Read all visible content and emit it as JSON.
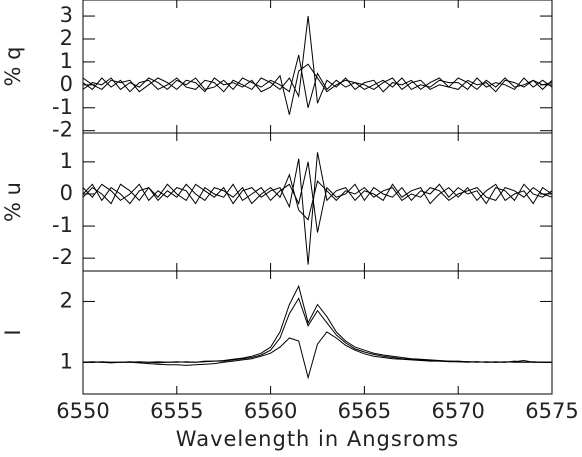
{
  "chart_data": [
    {
      "type": "line",
      "ylabel": "% q",
      "color": "#000000",
      "x": [
        6550,
        6550.5,
        6551,
        6551.5,
        6552,
        6552.5,
        6553,
        6553.5,
        6554,
        6554.5,
        6555,
        6555.5,
        6556,
        6556.5,
        6557,
        6557.5,
        6558,
        6558.5,
        6559,
        6559.5,
        6560,
        6560.5,
        6561,
        6561.5,
        6562,
        6562.5,
        6563,
        6563.5,
        6564,
        6564.5,
        6565,
        6565.5,
        6566,
        6566.5,
        6567,
        6567.5,
        6568,
        6568.5,
        6569,
        6569.5,
        6570,
        6570.5,
        6571,
        6571.5,
        6572,
        6572.5,
        6573,
        6573.5,
        6574,
        6574.5,
        6575
      ],
      "series": [
        {
          "values": [
            0.1,
            -0.2,
            0.3,
            -0.1,
            0.2,
            -0.3,
            0.1,
            0.2,
            -0.2,
            0.0,
            0.3,
            -0.1,
            -0.2,
            0.2,
            0.1,
            -0.3,
            0.2,
            0.0,
            -0.2,
            0.3,
            0.1,
            -0.2,
            0.3,
            -0.5,
            3.0,
            -0.8,
            0.2,
            -0.1,
            0.3,
            -0.2,
            0.1,
            0.2,
            -0.3,
            0.1,
            0.0,
            0.2,
            -0.2,
            0.1,
            0.3,
            -0.1,
            -0.2,
            0.2,
            0.0,
            0.1,
            -0.3,
            0.2,
            0.1,
            -0.1,
            0.2,
            0.0,
            0.1
          ]
        },
        {
          "values": [
            -0.2,
            0.1,
            0.0,
            0.3,
            -0.2,
            0.1,
            -0.1,
            0.3,
            0.1,
            -0.2,
            0.2,
            0.0,
            0.3,
            -0.2,
            -0.1,
            0.2,
            -0.2,
            0.3,
            0.1,
            -0.1,
            0.2,
            0.0,
            -0.3,
            1.3,
            -1.0,
            0.5,
            -0.2,
            0.2,
            -0.1,
            0.1,
            -0.2,
            0.0,
            0.2,
            -0.1,
            0.3,
            -0.2,
            0.0,
            -0.1,
            0.2,
            0.1,
            0.1,
            -0.2,
            0.3,
            -0.1,
            0.1,
            0.0,
            -0.2,
            0.3,
            -0.1,
            0.2,
            -0.1
          ]
        },
        {
          "values": [
            0.3,
            0.0,
            -0.2,
            0.2,
            0.1,
            0.2,
            -0.3,
            0.0,
            0.3,
            0.1,
            -0.2,
            0.2,
            0.1,
            -0.3,
            0.3,
            0.0,
            0.1,
            -0.1,
            0.2,
            -0.3,
            -0.1,
            0.4,
            -1.3,
            0.6,
            0.9,
            0.3,
            -0.3,
            0.0,
            0.2,
            0.1,
            0.0,
            -0.2,
            0.1,
            0.3,
            -0.2,
            0.1,
            0.2,
            -0.2,
            0.0,
            -0.1,
            0.3,
            0.1,
            -0.2,
            0.2,
            -0.1,
            0.3,
            -0.1,
            0.0,
            0.2,
            -0.2,
            0.2
          ]
        }
      ],
      "xlim": [
        6550,
        6575
      ],
      "ylim": [
        -2.1,
        3.7
      ],
      "yticks": [
        -2,
        -1,
        0,
        1,
        2,
        3
      ]
    },
    {
      "type": "line",
      "ylabel": "% u",
      "color": "#000000",
      "x": [
        6550,
        6550.5,
        6551,
        6551.5,
        6552,
        6552.5,
        6553,
        6553.5,
        6554,
        6554.5,
        6555,
        6555.5,
        6556,
        6556.5,
        6557,
        6557.5,
        6558,
        6558.5,
        6559,
        6559.5,
        6560,
        6560.5,
        6561,
        6561.5,
        6562,
        6562.5,
        6563,
        6563.5,
        6564,
        6564.5,
        6565,
        6565.5,
        6566,
        6566.5,
        6567,
        6567.5,
        6568,
        6568.5,
        6569,
        6569.5,
        6570,
        6570.5,
        6571,
        6571.5,
        6572,
        6572.5,
        6573,
        6573.5,
        6574,
        6574.5,
        6575
      ],
      "series": [
        {
          "values": [
            -0.1,
            0.2,
            0.0,
            -0.3,
            0.3,
            0.1,
            -0.2,
            0.2,
            -0.1,
            0.3,
            0.0,
            -0.2,
            0.3,
            0.1,
            -0.1,
            0.2,
            -0.3,
            0.1,
            0.2,
            -0.1,
            0.1,
            0.2,
            -0.4,
            1.1,
            -2.2,
            1.3,
            -0.2,
            0.1,
            0.2,
            -0.2,
            0.1,
            0.0,
            -0.2,
            0.3,
            -0.1,
            0.1,
            0.2,
            -0.3,
            0.0,
            0.2,
            -0.1,
            0.2,
            -0.2,
            0.1,
            0.3,
            -0.2,
            0.0,
            0.1,
            -0.3,
            0.2,
            0.0
          ]
        },
        {
          "values": [
            0.2,
            -0.1,
            0.3,
            0.1,
            -0.2,
            0.0,
            0.3,
            -0.2,
            0.1,
            -0.1,
            0.2,
            0.1,
            -0.3,
            0.2,
            0.0,
            -0.1,
            0.3,
            -0.2,
            0.0,
            0.2,
            -0.2,
            0.1,
            0.3,
            -0.3,
            1.0,
            -1.2,
            0.2,
            -0.1,
            0.0,
            0.3,
            -0.2,
            0.2,
            0.0,
            -0.1,
            0.2,
            -0.2,
            0.1,
            0.0,
            0.3,
            -0.1,
            0.2,
            0.0,
            0.1,
            -0.3,
            0.2,
            0.1,
            -0.2,
            0.3,
            0.0,
            -0.1,
            0.1
          ]
        },
        {
          "values": [
            0.0,
            0.3,
            -0.2,
            0.2,
            0.0,
            -0.3,
            0.1,
            0.2,
            -0.2,
            0.1,
            -0.1,
            0.3,
            0.0,
            -0.2,
            0.2,
            0.1,
            -0.1,
            0.2,
            -0.3,
            0.0,
            0.2,
            -0.1,
            0.6,
            -0.5,
            -0.8,
            0.4,
            0.1,
            -0.2,
            0.1,
            0.0,
            0.2,
            -0.1,
            0.1,
            0.2,
            -0.2,
            0.0,
            -0.1,
            0.2,
            0.1,
            -0.2,
            0.0,
            0.1,
            0.2,
            -0.1,
            -0.2,
            0.2,
            0.1,
            -0.1,
            0.2,
            0.0,
            -0.1
          ]
        }
      ],
      "xlim": [
        6550,
        6575
      ],
      "ylim": [
        -2.4,
        1.9
      ],
      "yticks": [
        -2,
        -1,
        0,
        1
      ]
    },
    {
      "type": "line",
      "ylabel": "I",
      "color": "#000000",
      "xlabel": "Wavelength in Angsroms",
      "x": [
        6550,
        6550.5,
        6551,
        6551.5,
        6552,
        6552.5,
        6553,
        6553.5,
        6554,
        6554.5,
        6555,
        6555.5,
        6556,
        6556.5,
        6557,
        6557.5,
        6558,
        6558.5,
        6559,
        6559.5,
        6560,
        6560.5,
        6561,
        6561.5,
        6562,
        6562.5,
        6563,
        6563.5,
        6564,
        6564.5,
        6565,
        6565.5,
        6566,
        6566.5,
        6567,
        6567.5,
        6568,
        6568.5,
        6569,
        6569.5,
        6570,
        6570.5,
        6571,
        6571.5,
        6572,
        6572.5,
        6573,
        6573.5,
        6574,
        6574.5,
        6575
      ],
      "series": [
        {
          "values": [
            1.0,
            1.01,
            1.0,
            0.99,
            1.0,
            1.01,
            1.0,
            1.0,
            1.01,
            1.0,
            1.0,
            1.01,
            1.0,
            1.02,
            1.02,
            1.03,
            1.05,
            1.07,
            1.1,
            1.15,
            1.25,
            1.5,
            1.95,
            2.25,
            1.65,
            1.95,
            1.75,
            1.5,
            1.35,
            1.25,
            1.2,
            1.15,
            1.12,
            1.1,
            1.08,
            1.06,
            1.05,
            1.04,
            1.03,
            1.02,
            1.02,
            1.01,
            1.01,
            1.0,
            1.01,
            1.0,
            1.02,
            1.0,
            1.01,
            1.0,
            1.0
          ]
        },
        {
          "values": [
            1.0,
            1.0,
            1.01,
            1.0,
            1.0,
            1.0,
            1.01,
            1.0,
            0.99,
            1.0,
            1.01,
            1.0,
            1.0,
            1.01,
            1.02,
            1.02,
            1.04,
            1.06,
            1.08,
            1.12,
            1.2,
            1.4,
            1.8,
            2.05,
            1.6,
            1.85,
            1.65,
            1.45,
            1.32,
            1.22,
            1.17,
            1.13,
            1.1,
            1.08,
            1.06,
            1.05,
            1.04,
            1.03,
            1.02,
            1.02,
            1.01,
            1.01,
            1.0,
            1.01,
            1.0,
            1.0,
            1.01,
            1.03,
            1.0,
            1.0,
            1.0
          ]
        },
        {
          "values": [
            1.0,
            1.0,
            1.0,
            1.0,
            1.0,
            1.0,
            0.99,
            0.98,
            0.97,
            0.96,
            0.96,
            0.95,
            0.96,
            0.97,
            0.98,
            1.0,
            1.02,
            1.04,
            1.06,
            1.1,
            1.15,
            1.25,
            1.4,
            1.35,
            0.75,
            1.3,
            1.5,
            1.4,
            1.28,
            1.2,
            1.14,
            1.1,
            1.08,
            1.06,
            1.05,
            1.04,
            1.03,
            1.02,
            1.02,
            1.01,
            1.01,
            1.0,
            1.01,
            1.0,
            1.0,
            1.01,
            1.0,
            1.0,
            1.0,
            1.0,
            1.0
          ]
        }
      ],
      "xlim": [
        6550,
        6575
      ],
      "ylim": [
        0.48,
        2.5
      ],
      "yticks": [
        1,
        2
      ],
      "xticks": [
        6550,
        6555,
        6560,
        6565,
        6570,
        6575
      ]
    }
  ]
}
